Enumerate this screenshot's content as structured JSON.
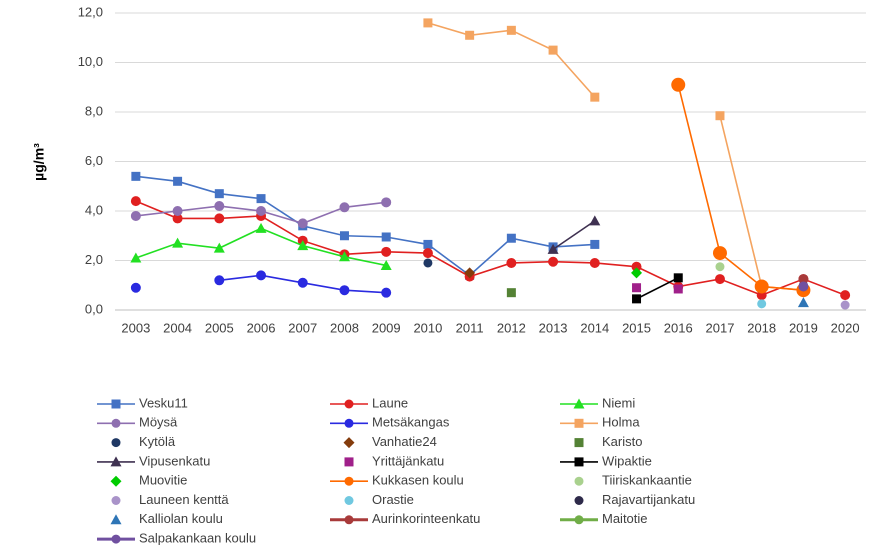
{
  "chart_data": {
    "type": "line",
    "y_label": "µg/m³",
    "categories": [
      "2003",
      "2004",
      "2005",
      "2006",
      "2007",
      "2008",
      "2009",
      "2010",
      "2011",
      "2012",
      "2013",
      "2014",
      "2015",
      "2016",
      "2017",
      "2018",
      "2019",
      "2020"
    ],
    "ylim": [
      0,
      12
    ],
    "yticks": [
      {
        "value": 0,
        "label": "0,0"
      },
      {
        "value": 2,
        "label": "2,0"
      },
      {
        "value": 4,
        "label": "4,0"
      },
      {
        "value": 6,
        "label": "6,0"
      },
      {
        "value": 8,
        "label": "8,0"
      },
      {
        "value": 10,
        "label": "10,0"
      },
      {
        "value": 12,
        "label": "12,0"
      }
    ],
    "grid": true,
    "legend": "bottom",
    "series": [
      {
        "name": "Vesku11",
        "color": "#4472c4",
        "marker": "square",
        "line": true,
        "values": [
          5.4,
          5.2,
          4.7,
          4.5,
          3.4,
          3.0,
          2.95,
          2.65,
          1.4,
          2.9,
          2.55,
          2.65,
          null,
          null,
          null,
          null,
          null,
          null
        ]
      },
      {
        "name": "Laune",
        "color": "#e02020",
        "marker": "circle",
        "line": true,
        "values": [
          4.4,
          3.7,
          3.7,
          3.8,
          2.8,
          2.25,
          2.35,
          2.3,
          1.35,
          1.9,
          1.95,
          1.9,
          1.75,
          0.95,
          1.25,
          0.6,
          1.25,
          0.6
        ]
      },
      {
        "name": "Niemi",
        "color": "#22e022",
        "marker": "triangle",
        "line": true,
        "values": [
          2.1,
          2.7,
          2.5,
          3.3,
          2.6,
          2.15,
          1.8,
          null,
          null,
          null,
          null,
          null,
          null,
          null,
          null,
          null,
          null,
          null
        ]
      },
      {
        "name": "Möysä",
        "color": "#8e6fb0",
        "marker": "circle",
        "line": true,
        "values": [
          3.8,
          4.0,
          4.2,
          4.0,
          3.5,
          4.15,
          4.35,
          null,
          null,
          null,
          null,
          null,
          null,
          null,
          null,
          null,
          null,
          null
        ]
      },
      {
        "name": "Metsäkangas",
        "color": "#2a2ae0",
        "marker": "circle",
        "line": true,
        "values": [
          0.9,
          null,
          1.2,
          1.4,
          1.1,
          0.8,
          0.7,
          null,
          null,
          null,
          null,
          null,
          null,
          null,
          null,
          null,
          null,
          null
        ]
      },
      {
        "name": "Holma",
        "color": "#f4a460",
        "marker": "square",
        "line": true,
        "values": [
          null,
          null,
          null,
          null,
          null,
          null,
          null,
          11.6,
          11.1,
          11.3,
          10.5,
          8.6,
          null,
          null,
          7.85,
          0.95,
          0.8,
          null
        ]
      },
      {
        "name": "Kytölä",
        "color": "#1f3864",
        "marker": "circle",
        "line": false,
        "values": [
          null,
          null,
          null,
          null,
          null,
          null,
          null,
          1.9,
          null,
          null,
          null,
          null,
          null,
          null,
          null,
          null,
          null,
          null
        ]
      },
      {
        "name": "Vanhatie24",
        "color": "#843c0c",
        "marker": "diamond",
        "line": false,
        "values": [
          null,
          null,
          null,
          null,
          null,
          null,
          null,
          null,
          1.5,
          null,
          null,
          null,
          null,
          null,
          null,
          null,
          null,
          null
        ]
      },
      {
        "name": "Karisto",
        "color": "#548235",
        "marker": "square",
        "line": false,
        "values": [
          null,
          null,
          null,
          null,
          null,
          null,
          null,
          null,
          null,
          0.7,
          null,
          null,
          null,
          null,
          null,
          null,
          null,
          null
        ]
      },
      {
        "name": "Vipusenkatu",
        "color": "#3f3151",
        "marker": "triangle",
        "line": true,
        "values": [
          null,
          null,
          null,
          null,
          null,
          null,
          null,
          null,
          null,
          null,
          2.45,
          3.6,
          null,
          null,
          null,
          null,
          null,
          null
        ]
      },
      {
        "name": "Yrittäjänkatu",
        "color": "#a0208a",
        "marker": "square",
        "line": false,
        "values": [
          null,
          null,
          null,
          null,
          null,
          null,
          null,
          null,
          null,
          null,
          null,
          null,
          0.9,
          0.85,
          null,
          null,
          null,
          null
        ]
      },
      {
        "name": "Wipaktie",
        "color": "#000000",
        "marker": "square",
        "line": true,
        "values": [
          null,
          null,
          null,
          null,
          null,
          null,
          null,
          null,
          null,
          null,
          null,
          null,
          0.45,
          1.3,
          null,
          null,
          null,
          null
        ]
      },
      {
        "name": "Muovitie",
        "color": "#00cc00",
        "marker": "diamond",
        "line": false,
        "values": [
          null,
          null,
          null,
          null,
          null,
          null,
          null,
          null,
          null,
          null,
          null,
          null,
          1.5,
          null,
          null,
          null,
          null,
          null
        ]
      },
      {
        "name": "Kukkasen koulu",
        "color": "#ff6a00",
        "marker": "circle",
        "line": true,
        "values": [
          null,
          null,
          null,
          null,
          null,
          null,
          null,
          null,
          null,
          null,
          null,
          null,
          null,
          9.1,
          2.3,
          0.95,
          0.8,
          null
        ]
      },
      {
        "name": "Tiiriskankaantie",
        "color": "#a9d18e",
        "marker": "circle",
        "line": false,
        "values": [
          null,
          null,
          null,
          null,
          null,
          null,
          null,
          null,
          null,
          null,
          null,
          null,
          null,
          null,
          1.75,
          null,
          null,
          null
        ]
      },
      {
        "name": "Launeen kenttä",
        "color": "#a993c9",
        "marker": "circle",
        "line": false,
        "values": [
          null,
          null,
          null,
          null,
          null,
          null,
          null,
          null,
          null,
          null,
          null,
          null,
          null,
          null,
          null,
          null,
          null,
          0.2
        ]
      },
      {
        "name": "Orastie",
        "color": "#70c8e0",
        "marker": "circle",
        "line": false,
        "values": [
          null,
          null,
          null,
          null,
          null,
          null,
          null,
          null,
          null,
          null,
          null,
          null,
          null,
          null,
          null,
          0.25,
          null,
          null
        ]
      },
      {
        "name": "Rajavartijankatu",
        "color": "#2e2a4a",
        "marker": "circle",
        "line": false,
        "values": [
          null,
          null,
          null,
          null,
          null,
          null,
          null,
          null,
          null,
          null,
          null,
          null,
          null,
          null,
          null,
          null,
          1.0,
          null
        ]
      },
      {
        "name": "Kalliolan koulu",
        "color": "#2e75b6",
        "marker": "triangle",
        "line": false,
        "values": [
          null,
          null,
          null,
          null,
          null,
          null,
          null,
          null,
          null,
          null,
          null,
          null,
          null,
          null,
          null,
          null,
          0.3,
          null
        ]
      },
      {
        "name": "Aurinkorinteenkatu",
        "color": "#a83a3a",
        "marker": "circle",
        "line": true,
        "values": [
          null,
          null,
          null,
          null,
          null,
          null,
          null,
          null,
          null,
          null,
          null,
          null,
          null,
          null,
          null,
          null,
          1.25,
          null
        ]
      },
      {
        "name": "Maitotie",
        "color": "#70ad47",
        "marker": "circle",
        "line": true,
        "values": [
          null,
          null,
          null,
          null,
          null,
          null,
          null,
          null,
          null,
          null,
          null,
          null,
          null,
          null,
          null,
          null,
          null,
          null
        ]
      },
      {
        "name": "Salpakankaan koulu",
        "color": "#7050a0",
        "marker": "circle",
        "line": true,
        "values": [
          null,
          null,
          null,
          null,
          null,
          null,
          null,
          null,
          null,
          null,
          null,
          null,
          null,
          null,
          null,
          null,
          0.95,
          null
        ]
      }
    ]
  }
}
